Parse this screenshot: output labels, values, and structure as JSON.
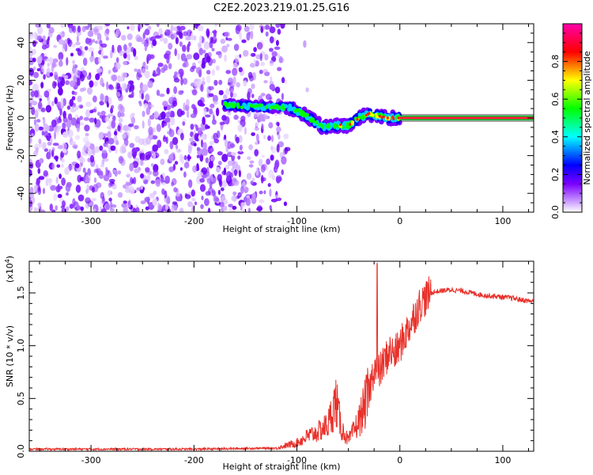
{
  "title": "C2E2.2023.219.01.25.G16",
  "chart_data": [
    {
      "type": "heatmap",
      "xlabel": "Height of straight line (km)",
      "ylabel": "Frequency (Hz)",
      "xlim": [
        -360,
        130
      ],
      "ylim": [
        -50,
        50
      ],
      "x_ticks": [
        -300,
        -200,
        -100,
        0,
        100
      ],
      "y_ticks": [
        -40,
        -20,
        0,
        20,
        40
      ],
      "colorbar": {
        "label": "Normalized spectral amplitude",
        "range": [
          0,
          1
        ],
        "ticks": [
          "0.0",
          "0.2",
          "0.4",
          "0.6",
          "0.8"
        ],
        "colors": [
          "#ffffff",
          "#7b00ff",
          "#0000ff",
          "#00ffff",
          "#00ff00",
          "#ffff00",
          "#ff0000",
          "#ff00aa"
        ]
      },
      "noise_region_x": [
        -360,
        -110
      ],
      "signal_ridge": [
        {
          "x": -170,
          "y": 7
        },
        {
          "x": -145,
          "y": 6
        },
        {
          "x": -120,
          "y": 6
        },
        {
          "x": -105,
          "y": 5
        },
        {
          "x": -90,
          "y": 1
        },
        {
          "x": -75,
          "y": -5
        },
        {
          "x": -65,
          "y": -4
        },
        {
          "x": -50,
          "y": -4
        },
        {
          "x": -40,
          "y": 0
        },
        {
          "x": -30,
          "y": 2
        },
        {
          "x": -20,
          "y": 1
        },
        {
          "x": -10,
          "y": 0
        },
        {
          "x": 0,
          "y": 0
        }
      ],
      "carrier_line": {
        "x_start": 0,
        "x_end": 130,
        "y": 0
      }
    },
    {
      "type": "line",
      "xlabel": "Height of straight line (km)",
      "ylabel": "SNR (10 * v/v)",
      "y_multiplier_label": "(x10",
      "y_multiplier_exp": "4",
      "xlim": [
        -360,
        130
      ],
      "ylim": [
        0,
        1.8
      ],
      "x_ticks": [
        -300,
        -200,
        -100,
        0,
        100
      ],
      "y_ticks": [
        "0.0",
        "0.5",
        "1.0",
        "1.5"
      ],
      "color": "#e8302a",
      "series": [
        {
          "x": [
            -360,
            -300,
            -200,
            -120,
            -100,
            -90,
            -80,
            -70,
            -62,
            -57,
            -50,
            -40,
            -30,
            -25,
            -20,
            -15,
            -10,
            -5,
            0,
            10,
            20,
            30,
            40,
            50,
            60,
            70,
            80,
            90,
            100,
            110,
            120,
            130
          ],
          "y": [
            0.02,
            0.02,
            0.02,
            0.03,
            0.08,
            0.14,
            0.18,
            0.25,
            0.48,
            0.22,
            0.1,
            0.28,
            0.55,
            0.8,
            0.75,
            0.85,
            0.95,
            0.92,
            1.0,
            1.2,
            1.4,
            1.5,
            1.52,
            1.53,
            1.52,
            1.5,
            1.48,
            1.47,
            1.46,
            1.45,
            1.43,
            1.42
          ],
          "spike": {
            "x": -22,
            "y": 1.78
          }
        }
      ]
    }
  ]
}
